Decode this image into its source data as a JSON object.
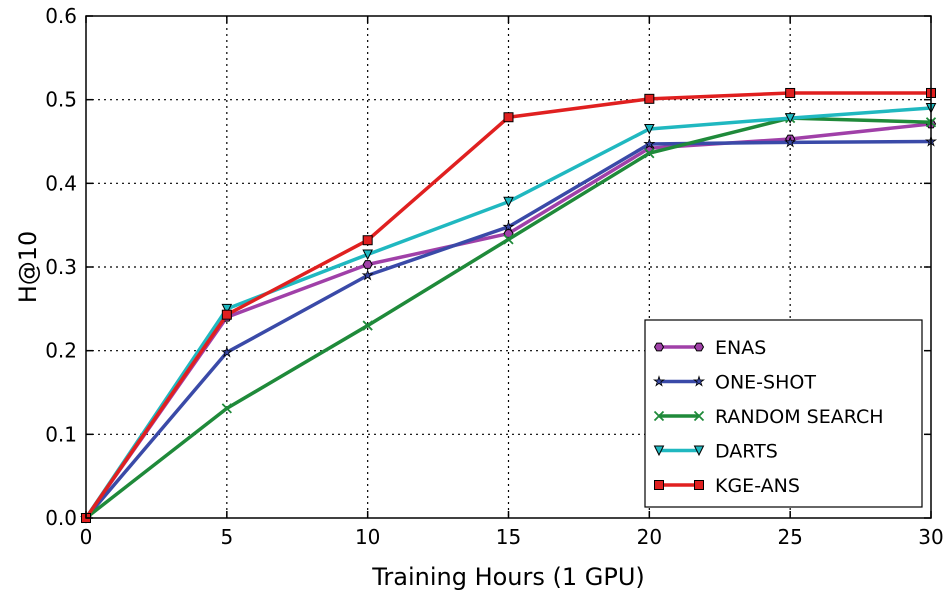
{
  "chart_data": {
    "type": "line",
    "title": "",
    "xlabel": "Training Hours (1 GPU)",
    "ylabel": "H@10",
    "xlim": [
      0,
      30
    ],
    "ylim": [
      0.0,
      0.6
    ],
    "xticks": [
      0,
      5,
      10,
      15,
      20,
      25,
      30
    ],
    "yticks": [
      0.0,
      0.1,
      0.2,
      0.3,
      0.4,
      0.5,
      0.6
    ],
    "xtick_labels": [
      "0",
      "5",
      "10",
      "15",
      "20",
      "25",
      "30"
    ],
    "ytick_labels": [
      "0.0",
      "0.1",
      "0.2",
      "0.3",
      "0.4",
      "0.5",
      "0.6"
    ],
    "grid": true,
    "legend_position": "lower-right",
    "x": [
      0,
      5,
      10,
      15,
      20,
      25,
      30
    ],
    "series": [
      {
        "name": "ENAS",
        "color": "#a040a8",
        "marker": "hexagon",
        "values": [
          0.0,
          0.24,
          0.303,
          0.34,
          0.442,
          0.453,
          0.471
        ]
      },
      {
        "name": "ONE-SHOT",
        "color": "#3a4aa8",
        "marker": "star",
        "values": [
          0.0,
          0.198,
          0.29,
          0.348,
          0.447,
          0.449,
          0.45
        ]
      },
      {
        "name": "RANDOM SEARCH",
        "color": "#1f8a3a",
        "marker": "x",
        "values": [
          0.0,
          0.131,
          0.23,
          0.333,
          0.436,
          0.478,
          0.473
        ]
      },
      {
        "name": "DARTS",
        "color": "#20b8c0",
        "marker": "triangle-down",
        "values": [
          0.0,
          0.25,
          0.315,
          0.378,
          0.465,
          0.478,
          0.49
        ]
      },
      {
        "name": "KGE-ANS",
        "color": "#e02020",
        "marker": "square",
        "values": [
          0.0,
          0.243,
          0.332,
          0.479,
          0.501,
          0.508,
          0.508
        ]
      }
    ]
  }
}
